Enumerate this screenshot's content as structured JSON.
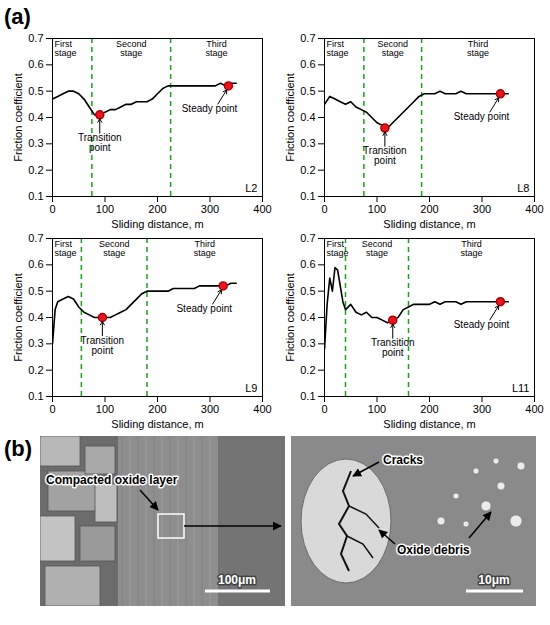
{
  "panel_labels": [
    "(a)",
    "(b)"
  ],
  "chart_data": [
    {
      "type": "line",
      "title": "L2",
      "x_label": "Sliding distance, m",
      "y_label": "Friction coefficient",
      "xlim": [
        0,
        400
      ],
      "xticks": [
        0,
        100,
        200,
        300,
        400
      ],
      "ylim": [
        0.1,
        0.7
      ],
      "yticks": [
        0.1,
        0.2,
        0.3,
        0.4,
        0.5,
        0.6,
        0.7
      ],
      "grid": false,
      "color": "#000000",
      "x": [
        0,
        10,
        20,
        30,
        40,
        50,
        60,
        70,
        80,
        90,
        100,
        110,
        120,
        130,
        140,
        150,
        160,
        170,
        180,
        190,
        200,
        210,
        220,
        230,
        240,
        250,
        260,
        270,
        280,
        290,
        300,
        310,
        320,
        330,
        340,
        350
      ],
      "values": [
        0.47,
        0.48,
        0.49,
        0.5,
        0.5,
        0.49,
        0.47,
        0.44,
        0.41,
        0.41,
        0.42,
        0.43,
        0.43,
        0.44,
        0.45,
        0.45,
        0.46,
        0.46,
        0.46,
        0.47,
        0.49,
        0.51,
        0.52,
        0.52,
        0.52,
        0.52,
        0.52,
        0.52,
        0.52,
        0.52,
        0.52,
        0.52,
        0.53,
        0.52,
        0.53,
        0.53
      ],
      "stages": [
        "First stage",
        "Second stage",
        "Third stage"
      ],
      "stage_boundaries": [
        75,
        225
      ],
      "points": [
        {
          "label": "Transition point",
          "x": 90,
          "y": 0.41
        },
        {
          "label": "Steady point",
          "x": 335,
          "y": 0.52
        }
      ]
    },
    {
      "type": "line",
      "title": "L8",
      "x_label": "Sliding distance, m",
      "y_label": "Friction coefficient",
      "xlim": [
        0,
        400
      ],
      "xticks": [
        0,
        100,
        200,
        300,
        400
      ],
      "ylim": [
        0.1,
        0.7
      ],
      "yticks": [
        0.1,
        0.2,
        0.3,
        0.4,
        0.5,
        0.6,
        0.7
      ],
      "grid": false,
      "color": "#000000",
      "x": [
        0,
        10,
        20,
        30,
        40,
        50,
        60,
        70,
        80,
        90,
        100,
        110,
        120,
        130,
        140,
        150,
        160,
        170,
        180,
        190,
        200,
        210,
        220,
        230,
        240,
        250,
        260,
        270,
        280,
        290,
        300,
        310,
        320,
        330,
        340,
        350
      ],
      "values": [
        0.45,
        0.48,
        0.47,
        0.46,
        0.45,
        0.46,
        0.44,
        0.43,
        0.42,
        0.4,
        0.38,
        0.37,
        0.36,
        0.38,
        0.4,
        0.42,
        0.44,
        0.46,
        0.48,
        0.49,
        0.49,
        0.49,
        0.5,
        0.49,
        0.49,
        0.49,
        0.5,
        0.49,
        0.49,
        0.49,
        0.49,
        0.49,
        0.49,
        0.49,
        0.49,
        0.49
      ],
      "stages": [
        "First stage",
        "Second stage",
        "Third stage"
      ],
      "stage_boundaries": [
        75,
        185
      ],
      "points": [
        {
          "label": "Transition point",
          "x": 115,
          "y": 0.36
        },
        {
          "label": "Steady point",
          "x": 335,
          "y": 0.49
        }
      ]
    },
    {
      "type": "line",
      "title": "L9",
      "x_label": "Sliding distance, m",
      "y_label": "Friction coefficient",
      "xlim": [
        0,
        400
      ],
      "xticks": [
        0,
        100,
        200,
        300,
        400
      ],
      "ylim": [
        0.1,
        0.7
      ],
      "yticks": [
        0.1,
        0.2,
        0.3,
        0.4,
        0.5,
        0.6,
        0.7
      ],
      "grid": false,
      "color": "#000000",
      "x": [
        0,
        5,
        10,
        20,
        30,
        40,
        50,
        60,
        70,
        80,
        90,
        100,
        110,
        120,
        130,
        140,
        150,
        160,
        170,
        180,
        190,
        200,
        210,
        220,
        230,
        240,
        250,
        260,
        270,
        280,
        290,
        300,
        310,
        320,
        330,
        340,
        350
      ],
      "values": [
        0.3,
        0.43,
        0.46,
        0.47,
        0.48,
        0.47,
        0.44,
        0.42,
        0.41,
        0.4,
        0.4,
        0.4,
        0.4,
        0.41,
        0.42,
        0.43,
        0.45,
        0.47,
        0.49,
        0.5,
        0.5,
        0.5,
        0.5,
        0.5,
        0.51,
        0.51,
        0.51,
        0.51,
        0.51,
        0.52,
        0.52,
        0.52,
        0.52,
        0.52,
        0.52,
        0.53,
        0.53
      ],
      "stages": [
        "First stage",
        "Second stage",
        "Third stage"
      ],
      "stage_boundaries": [
        55,
        180
      ],
      "points": [
        {
          "label": "Transition point",
          "x": 95,
          "y": 0.4
        },
        {
          "label": "Steady point",
          "x": 325,
          "y": 0.52
        }
      ]
    },
    {
      "type": "line",
      "title": "L11",
      "x_label": "Sliding distance, m",
      "y_label": "Friction coefficient",
      "xlim": [
        0,
        400
      ],
      "xticks": [
        0,
        100,
        200,
        300,
        400
      ],
      "ylim": [
        0.1,
        0.7
      ],
      "yticks": [
        0.1,
        0.2,
        0.3,
        0.4,
        0.5,
        0.6,
        0.7
      ],
      "grid": false,
      "color": "#000000",
      "x": [
        0,
        5,
        10,
        15,
        20,
        25,
        30,
        35,
        40,
        50,
        60,
        70,
        80,
        90,
        100,
        110,
        120,
        130,
        140,
        150,
        160,
        170,
        180,
        190,
        200,
        210,
        220,
        230,
        240,
        250,
        260,
        270,
        280,
        290,
        300,
        310,
        320,
        330,
        340,
        350
      ],
      "values": [
        0.28,
        0.45,
        0.55,
        0.5,
        0.59,
        0.58,
        0.52,
        0.46,
        0.43,
        0.45,
        0.42,
        0.41,
        0.42,
        0.4,
        0.4,
        0.39,
        0.38,
        0.39,
        0.4,
        0.43,
        0.44,
        0.45,
        0.45,
        0.45,
        0.45,
        0.46,
        0.45,
        0.46,
        0.46,
        0.46,
        0.45,
        0.46,
        0.46,
        0.46,
        0.46,
        0.46,
        0.46,
        0.46,
        0.46,
        0.46
      ],
      "stages": [
        "First stage",
        "Second stage",
        "Third stage"
      ],
      "stage_boundaries": [
        40,
        160
      ],
      "points": [
        {
          "label": "Transition point",
          "x": 130,
          "y": 0.39
        },
        {
          "label": "Steady point",
          "x": 335,
          "y": 0.46
        }
      ]
    }
  ],
  "images": [
    {
      "annotations": [
        "Compacted oxide layer"
      ],
      "scale_bar": "100μm"
    },
    {
      "annotations": [
        "Cracks",
        "Oxide debris"
      ],
      "scale_bar": "10μm"
    }
  ]
}
